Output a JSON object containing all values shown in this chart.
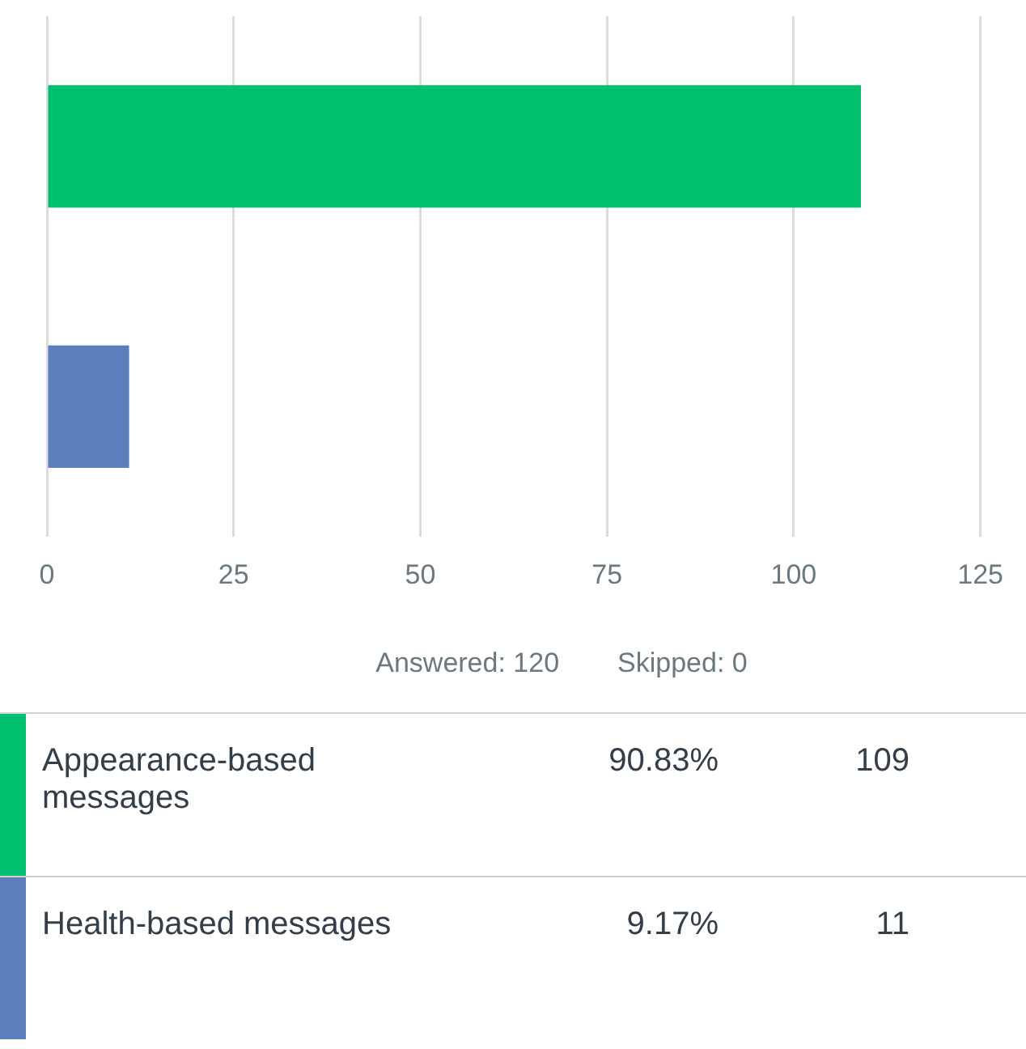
{
  "chart_data": {
    "type": "bar",
    "orientation": "horizontal",
    "categories": [
      null,
      null
    ],
    "values": [
      109,
      11
    ],
    "colors": [
      "#00bf6f",
      "#5a7fba"
    ],
    "xlim": [
      0,
      125
    ],
    "xticks": [
      0,
      25,
      50,
      75,
      100,
      125
    ],
    "grid": "x",
    "annotations": [
      "Answered: 120",
      "Skipped: 0",
      "Appearance-based messages",
      "90.83%",
      "109",
      "Health-based messages",
      "9.17%",
      "11"
    ]
  }
}
